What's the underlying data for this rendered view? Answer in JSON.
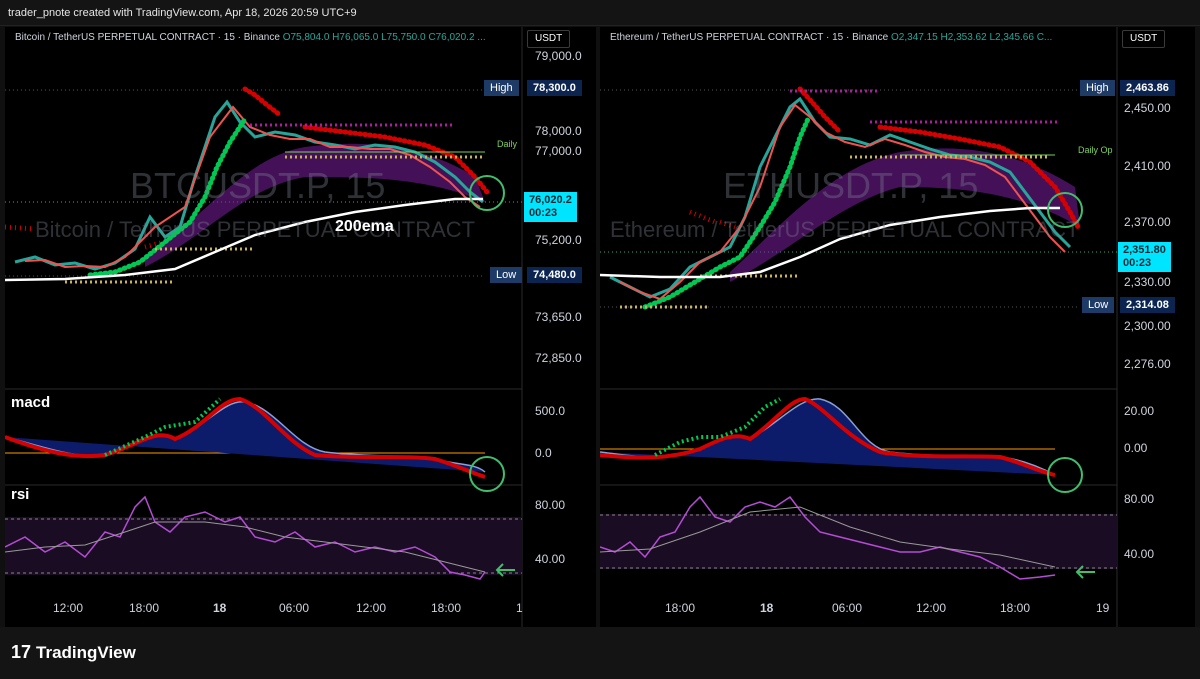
{
  "credit": "trader_pnote created with TradingView.com, Apr 18, 2026 20:59 UTC+9",
  "brand": {
    "mark": "17",
    "name": "TradingView"
  },
  "indicators": {
    "macd": "macd",
    "rsi": "rsi"
  },
  "left": {
    "header_pair": "Bitcoin / TetherUS PERPETUAL CONTRACT · 15 · Binance ",
    "ohlc": "O75,804.0 H76,065.0 L75,750.0 C76,020.2 ...",
    "currency": "USDT",
    "watermark_symbol": "BTCUSDT.P, 15",
    "watermark_name": "Bitcoin / TetherUS PERPETUAL CONTRACT",
    "ema_label": "200ema",
    "daily_label": "Daily",
    "high_label": "High",
    "high_value": "78,300.0",
    "low_label": "Low",
    "low_value": "74,480.0",
    "last_price": "76,020.2",
    "countdown": "00:23",
    "price_ticks": [
      "79,000.0",
      "78,000.0",
      "77,000.0",
      "75,200.0",
      "73,650.0",
      "72,850.0"
    ],
    "macd_ticks": [
      "500.0",
      "0.0"
    ],
    "rsi_ticks": [
      "80.00",
      "40.00"
    ],
    "time_ticks": [
      "12:00",
      "18:00",
      "18",
      "06:00",
      "12:00",
      "18:00",
      "1"
    ]
  },
  "right": {
    "header_pair": "Ethereum / TetherUS PERPETUAL CONTRACT · 15 · Binance ",
    "ohlc": "O2,347.15 H2,353.62 L2,345.66 C...",
    "currency": "USDT",
    "watermark_symbol": "ETHUSDT.P, 15",
    "watermark_name": "Ethereum / TetherUS PERPETUAL CONTRACT",
    "daily_label": "Daily Op",
    "high_label": "High",
    "high_value": "2,463.86",
    "low_label": "Low",
    "low_value": "2,314.08",
    "last_price": "2,351.80",
    "countdown": "00:23",
    "price_ticks": [
      "2,450.00",
      "2,410.00",
      "2,370.00",
      "2,330.00",
      "2,300.00",
      "2,276.00"
    ],
    "macd_ticks": [
      "20.00",
      "0.00"
    ],
    "rsi_ticks": [
      "80.00",
      "40.00"
    ],
    "time_ticks": [
      "18:00",
      "18",
      "06:00",
      "12:00",
      "18:00",
      "19"
    ]
  },
  "colors": {
    "bull": "#26a69a",
    "bear": "#ef5350",
    "ema200": "#ffffff",
    "dots_red": "#d50000",
    "dots_green": "#00c853",
    "cloud": "#7b1fa2",
    "live": "#00e5ff"
  }
}
